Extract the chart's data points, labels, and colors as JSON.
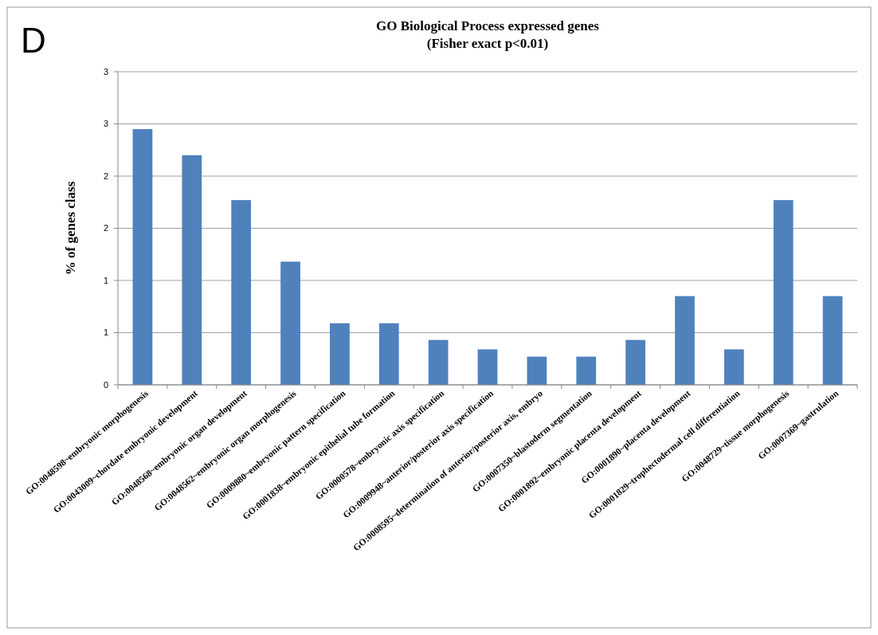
{
  "chart_data": {
    "type": "bar",
    "title": "GO Biological Process expressed genes",
    "subtitle": "(Fisher exact p<0.01)",
    "ylabel": "% of genes class",
    "annotations": [
      "D"
    ],
    "categories": [
      "GO:0048598~embryonic morphogenesis",
      "GO:0043009~chordate embryonic development",
      "GO:0048568~embryonic organ development",
      "GO:0048562~embryonic organ morphogenesis",
      "GO:0009880~embryonic pattern specification",
      "GO:0001838~embryonic epithelial tube formation",
      "GO:0000578~embryonic axis specification",
      "GO:0009948~anterior/posterior axis specification",
      "GO:0008595~determination of anterior/posterior axis, embryo",
      "GO:0007350~blastoderm segmentation",
      "GO:0001892~embryonic placenta development",
      "GO:0001890~placenta development",
      "GO:0001829~trophectodermal cell differentiation",
      "GO:0048729~tissue morphogenesis",
      "GO:0007369~gastrulation"
    ],
    "values": [
      2.45,
      2.2,
      1.77,
      1.18,
      0.59,
      0.59,
      0.43,
      0.34,
      0.27,
      0.27,
      0.43,
      0.85,
      0.34,
      1.77,
      0.85
    ],
    "color": "#4f81bd",
    "ylim": [
      0,
      3
    ],
    "yticks": [
      0,
      {
        "value": 0.5,
        "label": "1"
      },
      1,
      {
        "value": 1.5,
        "label": "2"
      },
      2,
      {
        "value": 2.5,
        "label": "3"
      },
      3
    ],
    "grid": "y"
  }
}
